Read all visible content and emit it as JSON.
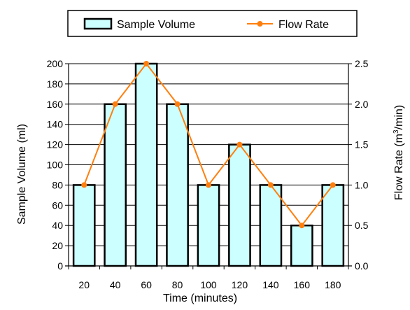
{
  "chart_data": {
    "type": "bar",
    "categories": [
      "20",
      "40",
      "60",
      "80",
      "100",
      "120",
      "140",
      "160",
      "180"
    ],
    "xlabel": "Time (minutes)",
    "series": [
      {
        "name": "Sample Volume",
        "type": "bar",
        "axis": "left",
        "values": [
          80,
          160,
          200,
          160,
          80,
          120,
          80,
          40,
          80
        ]
      },
      {
        "name": "Flow Rate",
        "type": "line",
        "axis": "right",
        "values": [
          1.0,
          2.0,
          2.5,
          2.0,
          1.0,
          1.5,
          1.0,
          0.5,
          1.0
        ]
      }
    ],
    "y_left": {
      "label": "Sample Volume (ml)",
      "ylim": [
        0,
        200
      ],
      "ticks": [
        "0",
        "20",
        "40",
        "60",
        "80",
        "100",
        "120",
        "140",
        "160",
        "180",
        "200"
      ]
    },
    "y_right": {
      "label_main": "Flow Rate (m",
      "label_sup": "3",
      "label_end": "/min)",
      "ylim": [
        0,
        2.5
      ],
      "ticks": [
        "0.0",
        "0.5",
        "1.0",
        "1.5",
        "2.0",
        "2.5"
      ]
    },
    "grid": "horizontal",
    "legend_position": "top-center",
    "colors": {
      "bar_fill": "#ccffff",
      "bar_stroke": "#000000",
      "line": "#ff7f0e",
      "grid": "#000000"
    }
  }
}
